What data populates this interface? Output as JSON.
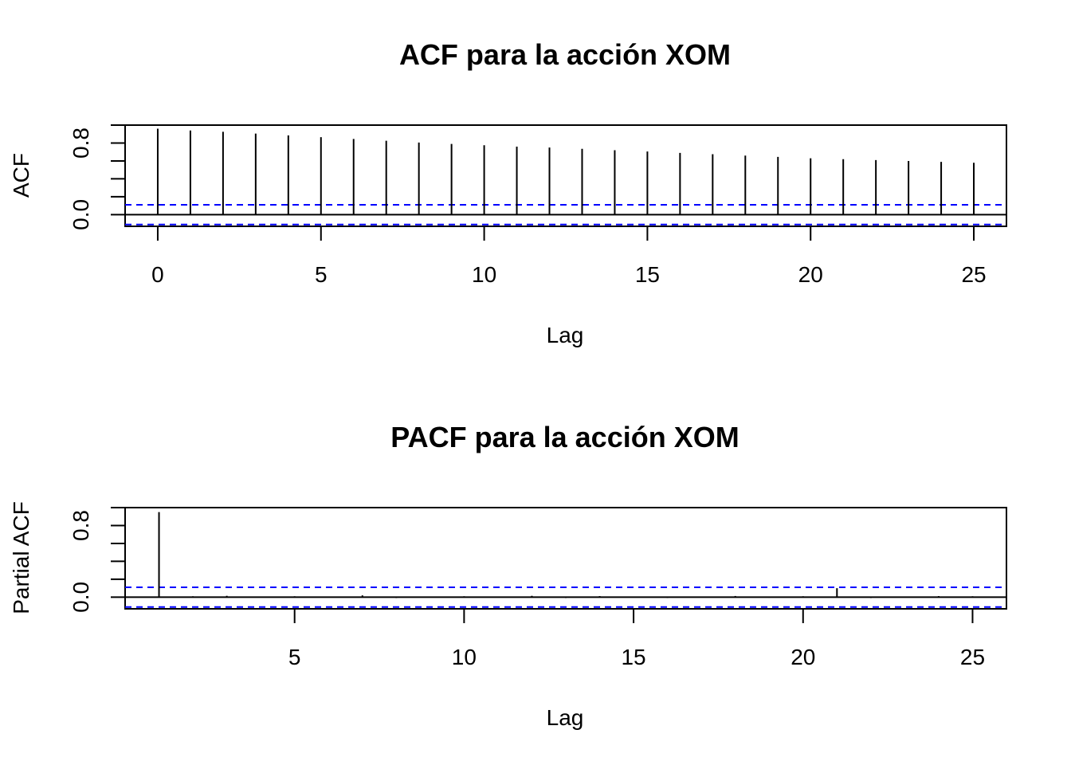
{
  "chart_data": [
    {
      "type": "bar",
      "title": "ACF para la acción XOM",
      "xlabel": "Lag",
      "ylabel": "ACF",
      "xlim": [
        -1,
        26
      ],
      "ylim": [
        -0.13,
        1.0
      ],
      "x_ticks": [
        0,
        5,
        10,
        15,
        20,
        25
      ],
      "x_tick_labels": [
        "0",
        "5",
        "10",
        "15",
        "20",
        "25"
      ],
      "y_ticks": [
        0.0,
        0.2,
        0.4,
        0.6,
        0.8,
        1.0
      ],
      "y_tick_labels": [
        "0.0",
        "",
        "",
        "",
        "0.8",
        ""
      ],
      "ci": 0.11,
      "x": [
        0,
        1,
        2,
        3,
        4,
        5,
        6,
        7,
        8,
        9,
        10,
        11,
        12,
        13,
        14,
        15,
        16,
        17,
        18,
        19,
        20,
        21,
        22,
        23,
        24,
        25
      ],
      "values": [
        0.96,
        0.94,
        0.925,
        0.905,
        0.885,
        0.865,
        0.845,
        0.825,
        0.805,
        0.79,
        0.775,
        0.76,
        0.75,
        0.735,
        0.72,
        0.705,
        0.69,
        0.675,
        0.66,
        0.645,
        0.63,
        0.62,
        0.61,
        0.6,
        0.59,
        0.58
      ],
      "grid": false
    },
    {
      "type": "bar",
      "title": "PACF para la acción XOM",
      "xlabel": "Lag",
      "ylabel": "Partial ACF",
      "xlim": [
        0,
        26
      ],
      "ylim": [
        -0.13,
        1.0
      ],
      "x_ticks": [
        5,
        10,
        15,
        20,
        25
      ],
      "x_tick_labels": [
        "5",
        "10",
        "15",
        "20",
        "25"
      ],
      "y_ticks": [
        0.0,
        0.2,
        0.4,
        0.6,
        0.8,
        1.0
      ],
      "y_tick_labels": [
        "0.0",
        "",
        "",
        "",
        "0.8",
        ""
      ],
      "ci": 0.11,
      "x": [
        1,
        2,
        3,
        4,
        5,
        6,
        7,
        8,
        9,
        10,
        11,
        12,
        13,
        14,
        15,
        16,
        17,
        18,
        19,
        20,
        21,
        22,
        23,
        24,
        25
      ],
      "values": [
        0.95,
        0.01,
        0.015,
        -0.005,
        0.01,
        0.005,
        0.02,
        -0.01,
        0.005,
        0.01,
        -0.005,
        0.015,
        -0.01,
        0.012,
        0.0,
        -0.008,
        0.006,
        0.013,
        -0.006,
        0.01,
        0.1,
        -0.01,
        0.008,
        0.012,
        0.01
      ],
      "grid": false
    }
  ]
}
